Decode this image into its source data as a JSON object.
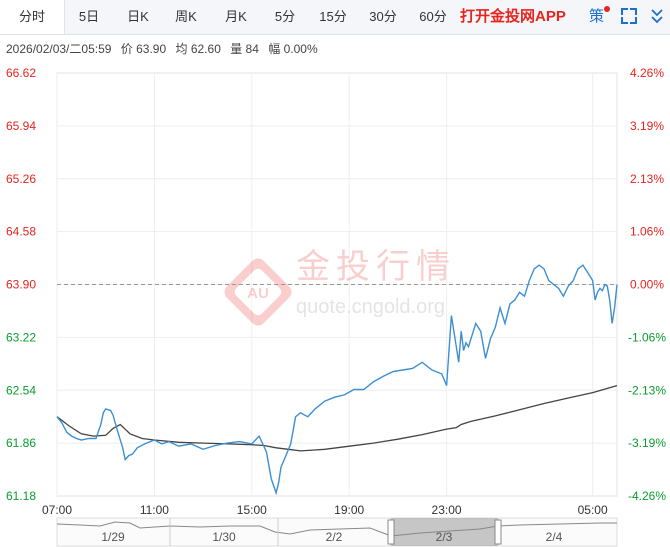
{
  "tabs": {
    "items": [
      "分时",
      "5日",
      "日K",
      "周K",
      "月K",
      "5分",
      "15分",
      "30分",
      "60分"
    ],
    "active": "分时",
    "promo": "打开金投网APP",
    "strategy": "策"
  },
  "info": {
    "datetime": "2026/02/03/二05:59",
    "price": "价 63.90",
    "avg": "均 62.60",
    "volume": "量 84",
    "change": "幅 0.00%"
  },
  "watermark": {
    "logo_text": "AU",
    "brand": "金投行情",
    "url": "quote.cngold.org"
  },
  "colors": {
    "price_line": "#3d8fd1",
    "avg_line": "#444444",
    "up": "#e8241f",
    "down": "#0b9d2f",
    "reference": "#999999"
  },
  "chart_data": {
    "type": "line",
    "y_left_ticks": [
      "66.62",
      "65.94",
      "65.26",
      "64.58",
      "63.90",
      "63.22",
      "62.54",
      "61.86",
      "61.18"
    ],
    "y_right_ticks": [
      "4.26%",
      "3.19%",
      "2.13%",
      "1.06%",
      "0.00%",
      "-1.06%",
      "-2.13%",
      "-3.19%",
      "-4.26%"
    ],
    "ylim": [
      61.18,
      66.62
    ],
    "reference_price": 63.9,
    "x_ticks": [
      "07:00",
      "11:00",
      "15:00",
      "19:00",
      "23:00",
      "05:00"
    ],
    "x_tick_hours": [
      0,
      4,
      8,
      12,
      16,
      22
    ],
    "x_range_hours": [
      0,
      23
    ],
    "series": [
      {
        "role": "price",
        "x": [
          0,
          0.2,
          0.4,
          0.6,
          0.8,
          1.0,
          1.3,
          1.6,
          1.8,
          1.9,
          2.0,
          2.2,
          2.3,
          2.5,
          2.7,
          2.8,
          2.95,
          3.1,
          3.3,
          3.6,
          4.0,
          4.3,
          4.6,
          5.0,
          5.5,
          6.0,
          6.5,
          7.0,
          7.5,
          8.0,
          8.3,
          8.6,
          8.8,
          9.0,
          9.1,
          9.2,
          9.4,
          9.6,
          9.8,
          10.0,
          10.3,
          10.6,
          11.0,
          11.4,
          11.8,
          12.2,
          12.6,
          13.0,
          13.4,
          13.8,
          14.2,
          14.6,
          15.0,
          15.4,
          15.8,
          16.0,
          16.2,
          16.4,
          16.5,
          16.6,
          16.7,
          16.8,
          16.9,
          17.0,
          17.2,
          17.4,
          17.6,
          17.8,
          18.0,
          18.2,
          18.4,
          18.6,
          18.8,
          19.0,
          19.2,
          19.4,
          19.6,
          19.8,
          20.0,
          20.2,
          20.4,
          20.6,
          20.8,
          21.0,
          21.2,
          21.4,
          21.6,
          21.8,
          22.0,
          22.1,
          22.2,
          22.3,
          22.4,
          22.5,
          22.6,
          22.7,
          22.8,
          22.9,
          23.0
        ],
        "values": [
          62.2,
          62.12,
          62.0,
          61.95,
          61.92,
          61.9,
          61.92,
          61.92,
          62.1,
          62.25,
          62.3,
          62.28,
          62.22,
          62.0,
          61.8,
          61.65,
          61.7,
          61.72,
          61.8,
          61.85,
          61.9,
          61.85,
          61.88,
          61.82,
          61.85,
          61.78,
          61.83,
          61.86,
          61.88,
          61.85,
          61.95,
          61.75,
          61.4,
          61.22,
          61.35,
          61.55,
          61.7,
          61.85,
          62.2,
          62.25,
          62.2,
          62.3,
          62.4,
          62.45,
          62.48,
          62.55,
          62.55,
          62.65,
          62.72,
          62.78,
          62.8,
          62.82,
          62.9,
          62.8,
          62.75,
          62.6,
          63.5,
          63.1,
          62.9,
          63.3,
          63.05,
          63.15,
          63.1,
          63.2,
          63.4,
          63.3,
          62.95,
          63.2,
          63.35,
          63.6,
          63.4,
          63.65,
          63.7,
          63.8,
          63.75,
          63.95,
          64.1,
          64.15,
          64.1,
          63.95,
          63.9,
          63.85,
          63.75,
          63.88,
          63.95,
          64.1,
          64.15,
          64.05,
          63.95,
          63.7,
          63.8,
          63.85,
          63.82,
          63.9,
          63.88,
          63.7,
          63.4,
          63.6,
          63.9
        ]
      },
      {
        "role": "average",
        "x": [
          0,
          0.5,
          1.0,
          1.5,
          2.0,
          2.3,
          2.6,
          3.0,
          3.5,
          4.0,
          5.0,
          6.0,
          7.0,
          8.0,
          8.5,
          9.0,
          9.5,
          10.0,
          10.5,
          11.0,
          12.0,
          13.0,
          14.0,
          15.0,
          16.0,
          16.4,
          16.6,
          17.0,
          18.0,
          19.0,
          20.0,
          21.0,
          22.0,
          23.0
        ],
        "values": [
          62.2,
          62.08,
          61.98,
          61.95,
          61.96,
          62.05,
          62.1,
          61.98,
          61.92,
          61.9,
          61.87,
          61.86,
          61.85,
          61.84,
          61.83,
          61.8,
          61.78,
          61.76,
          61.77,
          61.78,
          61.82,
          61.86,
          61.91,
          61.97,
          62.04,
          62.06,
          62.1,
          62.14,
          62.21,
          62.29,
          62.37,
          62.44,
          62.51,
          62.6
        ]
      }
    ]
  },
  "navigator": {
    "dates": [
      "1/29",
      "1/30",
      "2/2",
      "2/3",
      "2/4"
    ]
  }
}
